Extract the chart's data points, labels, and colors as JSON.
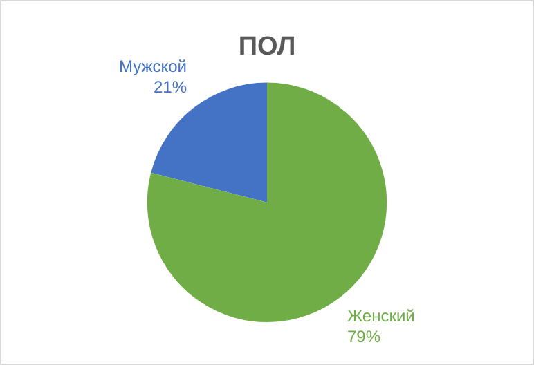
{
  "chart_data": {
    "type": "pie",
    "title": "ПОЛ",
    "categories": [
      "Мужской",
      "Женский"
    ],
    "values": [
      21,
      79
    ],
    "colors": [
      "#4472c4",
      "#70ad47"
    ],
    "value_labels": [
      "21%",
      "79%"
    ],
    "legend": false
  }
}
